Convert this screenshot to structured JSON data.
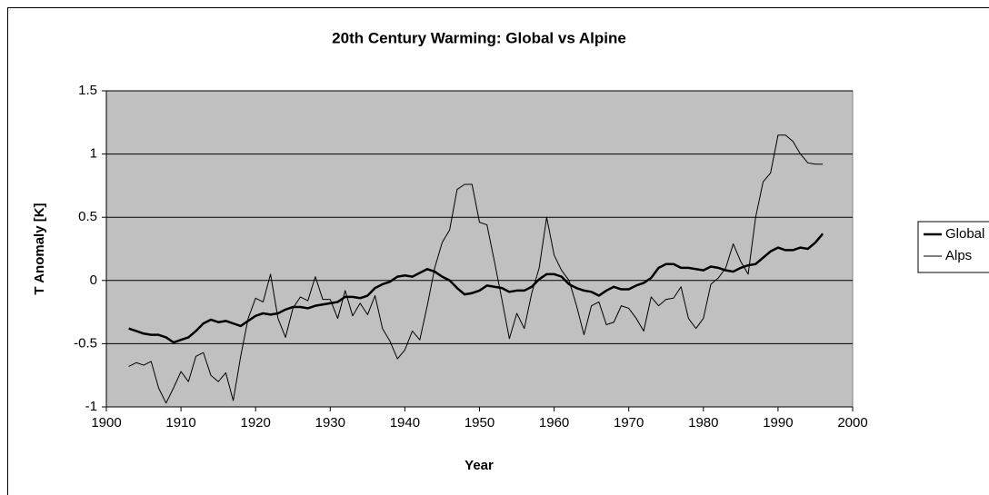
{
  "chart_data": {
    "type": "line",
    "title": "20th Century Warming: Global vs Alpine",
    "x_label": "Year",
    "y_label": "T Anomaly [K]",
    "x": [
      1903,
      1904,
      1905,
      1906,
      1907,
      1908,
      1909,
      1910,
      1911,
      1912,
      1913,
      1914,
      1915,
      1916,
      1917,
      1918,
      1919,
      1920,
      1921,
      1922,
      1923,
      1924,
      1925,
      1926,
      1927,
      1928,
      1929,
      1930,
      1931,
      1932,
      1933,
      1934,
      1935,
      1936,
      1937,
      1938,
      1939,
      1940,
      1941,
      1942,
      1943,
      1944,
      1945,
      1946,
      1947,
      1948,
      1949,
      1950,
      1951,
      1952,
      1953,
      1954,
      1955,
      1956,
      1957,
      1958,
      1959,
      1960,
      1961,
      1962,
      1963,
      1964,
      1965,
      1966,
      1967,
      1968,
      1969,
      1970,
      1971,
      1972,
      1973,
      1974,
      1975,
      1976,
      1977,
      1978,
      1979,
      1980,
      1981,
      1982,
      1983,
      1984,
      1985,
      1986,
      1987,
      1988,
      1989,
      1990,
      1991,
      1992,
      1993,
      1994,
      1995,
      1996
    ],
    "series": [
      {
        "name": "Global",
        "color": "#000000",
        "width": 2.5,
        "values": [
          -0.38,
          -0.4,
          -0.42,
          -0.43,
          -0.43,
          -0.45,
          -0.49,
          -0.47,
          -0.45,
          -0.4,
          -0.34,
          -0.31,
          -0.33,
          -0.32,
          -0.34,
          -0.36,
          -0.32,
          -0.28,
          -0.26,
          -0.27,
          -0.26,
          -0.23,
          -0.21,
          -0.21,
          -0.22,
          -0.2,
          -0.19,
          -0.18,
          -0.17,
          -0.13,
          -0.13,
          -0.14,
          -0.12,
          -0.06,
          -0.03,
          -0.01,
          0.03,
          0.04,
          0.03,
          0.06,
          0.09,
          0.07,
          0.03,
          0.0,
          -0.06,
          -0.11,
          -0.1,
          -0.08,
          -0.04,
          -0.05,
          -0.06,
          -0.09,
          -0.08,
          -0.08,
          -0.05,
          0.01,
          0.05,
          0.05,
          0.03,
          -0.03,
          -0.06,
          -0.08,
          -0.09,
          -0.12,
          -0.08,
          -0.05,
          -0.07,
          -0.07,
          -0.04,
          -0.02,
          0.02,
          0.1,
          0.13,
          0.13,
          0.1,
          0.1,
          0.09,
          0.08,
          0.11,
          0.1,
          0.08,
          0.07,
          0.1,
          0.12,
          0.13,
          0.18,
          0.23,
          0.26,
          0.24,
          0.24,
          0.26,
          0.25,
          0.3,
          0.37
        ]
      },
      {
        "name": "Alps",
        "color": "#000000",
        "width": 1,
        "values": [
          -0.68,
          -0.65,
          -0.67,
          -0.64,
          -0.85,
          -0.97,
          -0.85,
          -0.72,
          -0.8,
          -0.6,
          -0.57,
          -0.75,
          -0.8,
          -0.73,
          -0.95,
          -0.6,
          -0.3,
          -0.14,
          -0.17,
          0.05,
          -0.3,
          -0.45,
          -0.22,
          -0.13,
          -0.16,
          0.03,
          -0.15,
          -0.15,
          -0.3,
          -0.08,
          -0.28,
          -0.18,
          -0.27,
          -0.12,
          -0.38,
          -0.48,
          -0.62,
          -0.55,
          -0.4,
          -0.47,
          -0.2,
          0.1,
          0.3,
          0.4,
          0.72,
          0.76,
          0.76,
          0.46,
          0.44,
          0.15,
          -0.15,
          -0.46,
          -0.26,
          -0.38,
          -0.1,
          0.1,
          0.5,
          0.2,
          0.08,
          0.0,
          -0.2,
          -0.43,
          -0.2,
          -0.17,
          -0.35,
          -0.33,
          -0.2,
          -0.22,
          -0.3,
          -0.4,
          -0.13,
          -0.2,
          -0.15,
          -0.14,
          -0.05,
          -0.3,
          -0.38,
          -0.3,
          -0.03,
          0.02,
          0.1,
          0.29,
          0.15,
          0.05,
          0.5,
          0.78,
          0.85,
          1.15,
          1.15,
          1.1,
          1.0,
          0.93,
          0.92,
          0.92
        ]
      }
    ],
    "xlim": [
      1900,
      2000
    ],
    "xticks": [
      1900,
      1910,
      1920,
      1930,
      1940,
      1950,
      1960,
      1970,
      1980,
      1990,
      2000
    ],
    "ylim": [
      -1,
      1.5
    ],
    "yticks": [
      -1,
      -0.5,
      0,
      0.5,
      1,
      1.5
    ],
    "grid": true,
    "plot_background": "#c0c0c0",
    "legend": "right"
  }
}
